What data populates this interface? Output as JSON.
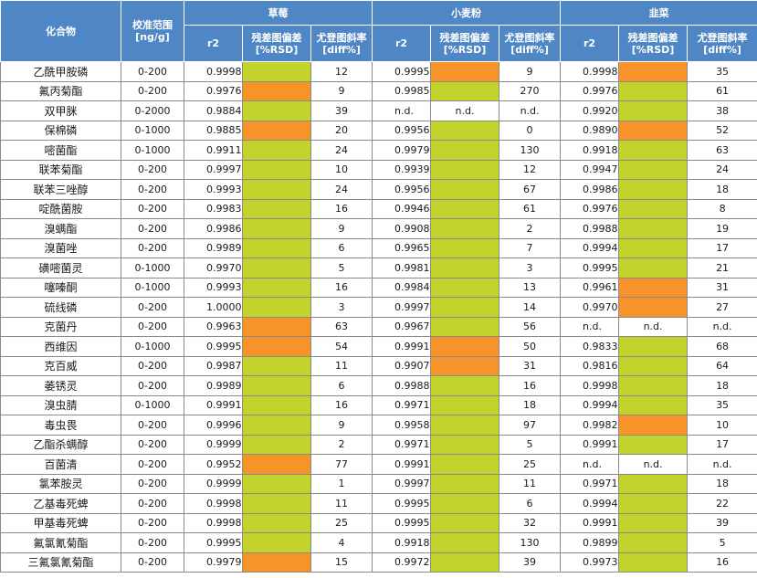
{
  "header": {
    "compound": "化合物",
    "range": "校准范围\n[ng/g]",
    "groups": [
      "草莓",
      "小麦粉",
      "韭菜"
    ],
    "sub": [
      "r2",
      "残差图偏差\n[%RSD]",
      "尤登图斜率\n[diff%]"
    ]
  },
  "colors": {
    "green": "#c2d42c",
    "orange": "#f6942a",
    "header": "#4f86c6"
  },
  "rows": [
    {
      "name": "乙酰甲胺磷",
      "range": "0-200",
      "c": [
        [
          "0.9998",
          "g",
          "12"
        ],
        [
          "0.9995",
          "o",
          "9"
        ],
        [
          "0.9998",
          "o",
          "35"
        ]
      ]
    },
    {
      "name": "氟丙菊酯",
      "range": "0-200",
      "c": [
        [
          "0.9976",
          "o",
          "9"
        ],
        [
          "0.9985",
          "g",
          "270"
        ],
        [
          "0.9976",
          "g",
          "61"
        ]
      ]
    },
    {
      "name": "双甲脒",
      "range": "0-2000",
      "c": [
        [
          "0.9884",
          "g",
          "39"
        ],
        [
          "n.d.",
          "n.d.",
          "n.d."
        ],
        [
          "0.9920",
          "g",
          "38"
        ]
      ]
    },
    {
      "name": "保棉磷",
      "range": "0-1000",
      "c": [
        [
          "0.9885",
          "o",
          "20"
        ],
        [
          "0.9956",
          "g",
          "0"
        ],
        [
          "0.9890",
          "o",
          "52"
        ]
      ]
    },
    {
      "name": "嘧菌酯",
      "range": "0-1000",
      "c": [
        [
          "0.9911",
          "g",
          "24"
        ],
        [
          "0.9979",
          "g",
          "130"
        ],
        [
          "0.9918",
          "g",
          "63"
        ]
      ]
    },
    {
      "name": "联苯菊酯",
      "range": "0-200",
      "c": [
        [
          "0.9997",
          "g",
          "10"
        ],
        [
          "0.9939",
          "g",
          "12"
        ],
        [
          "0.9947",
          "g",
          "24"
        ]
      ]
    },
    {
      "name": "联苯三唑醇",
      "range": "0-200",
      "c": [
        [
          "0.9993",
          "g",
          "24"
        ],
        [
          "0.9956",
          "g",
          "67"
        ],
        [
          "0.9986",
          "g",
          "18"
        ]
      ]
    },
    {
      "name": "啶酰菌胺",
      "range": "0-200",
      "c": [
        [
          "0.9983",
          "g",
          "16"
        ],
        [
          "0.9946",
          "g",
          "61"
        ],
        [
          "0.9976",
          "g",
          "8"
        ]
      ]
    },
    {
      "name": "溴螨酯",
      "range": "0-200",
      "c": [
        [
          "0.9986",
          "g",
          "9"
        ],
        [
          "0.9908",
          "g",
          "2"
        ],
        [
          "0.9988",
          "g",
          "19"
        ]
      ]
    },
    {
      "name": "溴菌唑",
      "range": "0-200",
      "c": [
        [
          "0.9989",
          "g",
          "6"
        ],
        [
          "0.9965",
          "g",
          "7"
        ],
        [
          "0.9994",
          "g",
          "17"
        ]
      ]
    },
    {
      "name": "磺嘧菌灵",
      "range": "0-1000",
      "c": [
        [
          "0.9970",
          "g",
          "5"
        ],
        [
          "0.9981",
          "g",
          "3"
        ],
        [
          "0.9995",
          "g",
          "21"
        ]
      ]
    },
    {
      "name": "噻嗪酮",
      "range": "0-1000",
      "c": [
        [
          "0.9993",
          "g",
          "16"
        ],
        [
          "0.9984",
          "g",
          "13"
        ],
        [
          "0.9961",
          "o",
          "31"
        ]
      ]
    },
    {
      "name": "硫线磷",
      "range": "0-200",
      "c": [
        [
          "1.0000",
          "g",
          "3"
        ],
        [
          "0.9997",
          "g",
          "14"
        ],
        [
          "0.9970",
          "o",
          "27"
        ]
      ]
    },
    {
      "name": "克菌丹",
      "range": "0-200",
      "c": [
        [
          "0.9963",
          "o",
          "63"
        ],
        [
          "0.9967",
          "g",
          "56"
        ],
        [
          "n.d.",
          "n.d.",
          "n.d."
        ]
      ]
    },
    {
      "name": "西维因",
      "range": "0-1000",
      "c": [
        [
          "0.9995",
          "o",
          "54"
        ],
        [
          "0.9991",
          "o",
          "50"
        ],
        [
          "0.9833",
          "g",
          "68"
        ]
      ]
    },
    {
      "name": "克百威",
      "range": "0-200",
      "c": [
        [
          "0.9987",
          "g",
          "11"
        ],
        [
          "0.9907",
          "o",
          "31"
        ],
        [
          "0.9816",
          "g",
          "64"
        ]
      ]
    },
    {
      "name": "萎锈灵",
      "range": "0-200",
      "c": [
        [
          "0.9989",
          "g",
          "6"
        ],
        [
          "0.9988",
          "g",
          "16"
        ],
        [
          "0.9998",
          "g",
          "18"
        ]
      ]
    },
    {
      "name": "溴虫腈",
      "range": "0-1000",
      "c": [
        [
          "0.9991",
          "g",
          "16"
        ],
        [
          "0.9971",
          "g",
          "18"
        ],
        [
          "0.9994",
          "g",
          "35"
        ]
      ]
    },
    {
      "name": "毒虫畏",
      "range": "0-200",
      "c": [
        [
          "0.9996",
          "g",
          "9"
        ],
        [
          "0.9958",
          "g",
          "97"
        ],
        [
          "0.9982",
          "o",
          "10"
        ]
      ]
    },
    {
      "name": "乙酯杀螨醇",
      "range": "0-200",
      "c": [
        [
          "0.9999",
          "g",
          "2"
        ],
        [
          "0.9971",
          "g",
          "5"
        ],
        [
          "0.9991",
          "g",
          "17"
        ]
      ]
    },
    {
      "name": "百菌清",
      "range": "0-200",
      "c": [
        [
          "0.9952",
          "o",
          "77"
        ],
        [
          "0.9991",
          "g",
          "25"
        ],
        [
          "n.d.",
          "n.d.",
          "n.d."
        ]
      ]
    },
    {
      "name": "氯苯胺灵",
      "range": "0-200",
      "c": [
        [
          "0.9999",
          "g",
          "1"
        ],
        [
          "0.9997",
          "g",
          "11"
        ],
        [
          "0.9971",
          "g",
          "18"
        ]
      ]
    },
    {
      "name": "乙基毒死蜱",
      "range": "0-200",
      "c": [
        [
          "0.9998",
          "g",
          "11"
        ],
        [
          "0.9995",
          "g",
          "6"
        ],
        [
          "0.9994",
          "g",
          "22"
        ]
      ]
    },
    {
      "name": "甲基毒死蜱",
      "range": "0-200",
      "c": [
        [
          "0.9998",
          "g",
          "25"
        ],
        [
          "0.9995",
          "g",
          "32"
        ],
        [
          "0.9991",
          "g",
          "39"
        ]
      ]
    },
    {
      "name": "氟氯氰菊酯",
      "range": "0-200",
      "c": [
        [
          "0.9995",
          "g",
          "4"
        ],
        [
          "0.9918",
          "g",
          "130"
        ],
        [
          "0.9899",
          "g",
          "5"
        ]
      ]
    },
    {
      "name": "三氟氯氰菊酯",
      "range": "0-200",
      "c": [
        [
          "0.9979",
          "o",
          "15"
        ],
        [
          "0.9972",
          "g",
          "39"
        ],
        [
          "0.9973",
          "g",
          "16"
        ]
      ]
    }
  ]
}
